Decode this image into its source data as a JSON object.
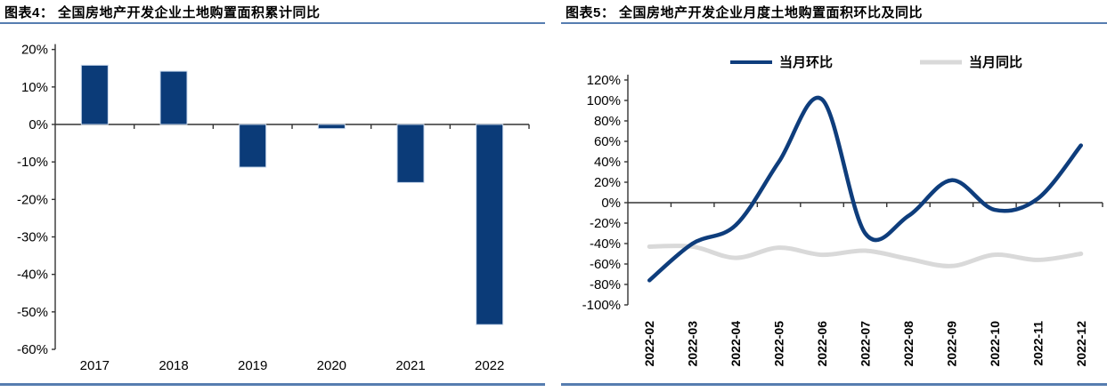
{
  "panels": [
    {
      "title": "图表4：  全国房地产开发企业土地购置面积累计同比"
    },
    {
      "title": "图表5：  全国房地产开发企业月度土地购置面积环比及同比"
    }
  ],
  "colors": {
    "bar_blue": "#0b3b78",
    "line_blue": "#0e3d7c",
    "line_gray": "#d9d9d9",
    "rule_blue": "#567db0",
    "axis_line": "#333333",
    "tick_text": "#000000"
  },
  "chart_data": [
    {
      "type": "bar",
      "title": "全国房地产开发企业土地购置面积累计同比",
      "categories": [
        "2017",
        "2018",
        "2019",
        "2020",
        "2021",
        "2022"
      ],
      "values": [
        15.8,
        14.2,
        -11.4,
        -1.1,
        -15.5,
        -53.4
      ],
      "unit": "%",
      "xlabel": "",
      "ylabel": "",
      "ylim": [
        -60,
        20
      ],
      "ytick_step": 10,
      "grid": false,
      "legend": false
    },
    {
      "type": "line",
      "title": "全国房地产开发企业月度土地购置面积环比及同比",
      "categories": [
        "2022-02",
        "2022-03",
        "2022-04",
        "2022-05",
        "2022-06",
        "2022-07",
        "2022-08",
        "2022-09",
        "2022-10",
        "2022-11",
        "2022-12"
      ],
      "series": [
        {
          "name": "当月环比",
          "color_key": "line_blue",
          "values": [
            -76,
            -40,
            -22,
            40,
            101,
            -30,
            -13,
            22,
            -7,
            4,
            56
          ]
        },
        {
          "name": "当月同比",
          "color_key": "line_gray",
          "values": [
            -43,
            -43,
            -54,
            -44,
            -51,
            -47,
            -55,
            -62,
            -51,
            -56,
            -50
          ]
        }
      ],
      "unit": "%",
      "xlabel": "",
      "ylabel": "",
      "ylim": [
        -100,
        120
      ],
      "ytick_step": 20,
      "grid": false,
      "smooth": true,
      "legend_position": "top"
    }
  ]
}
